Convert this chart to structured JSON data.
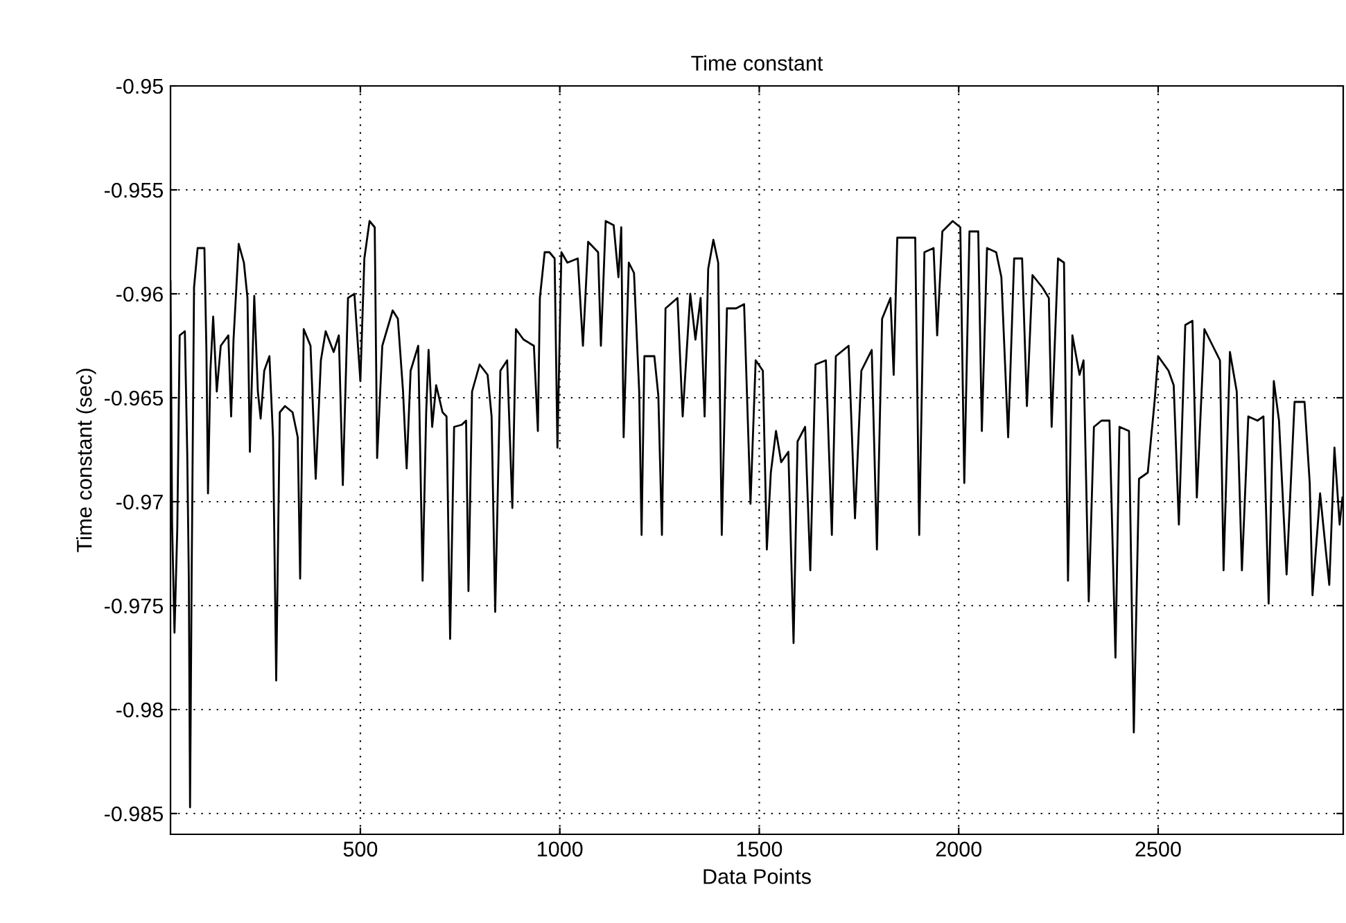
{
  "chart_data": {
    "type": "line",
    "title": "Time constant",
    "xlabel": "Data Points",
    "ylabel": "Time constant (sec)",
    "xlim": [
      24,
      2964
    ],
    "ylim": [
      -0.986,
      -0.95
    ],
    "xticks": [
      500,
      1000,
      1500,
      2000,
      2500
    ],
    "yticks": [
      -0.985,
      -0.98,
      -0.975,
      -0.97,
      -0.965,
      -0.96,
      -0.955,
      -0.95
    ],
    "grid": true,
    "legend": false,
    "marker": "none",
    "line_style": "solid",
    "series": [
      {
        "color": "#000000",
        "x": [
          24,
          28,
          34,
          41,
          47,
          60,
          66,
          70,
          73,
          77,
          83,
          92,
          109,
          114,
          118,
          124,
          131,
          140,
          150,
          169,
          176,
          182,
          195,
          208,
          217,
          223,
          234,
          243,
          250,
          259,
          272,
          281,
          289,
          298,
          311,
          330,
          343,
          349,
          358,
          375,
          388,
          401,
          413,
          433,
          446,
          456,
          469,
          485,
          500,
          510,
          523,
          536,
          542,
          555,
          581,
          594,
          607,
          616,
          626,
          645,
          656,
          665,
          671,
          680,
          690,
          706,
          716,
          725,
          735,
          754,
          765,
          771,
          780,
          799,
          819,
          829,
          838,
          851,
          868,
          881,
          890,
          909,
          935,
          945,
          950,
          962,
          974,
          987,
          994,
          1004,
          1019,
          1045,
          1058,
          1071,
          1096,
          1103,
          1115,
          1135,
          1147,
          1154,
          1160,
          1173,
          1186,
          1199,
          1205,
          1212,
          1237,
          1247,
          1256,
          1265,
          1295,
          1308,
          1327,
          1340,
          1353,
          1363,
          1372,
          1385,
          1397,
          1406,
          1419,
          1442,
          1462,
          1478,
          1491,
          1509,
          1519,
          1529,
          1542,
          1555,
          1573,
          1586,
          1596,
          1615,
          1628,
          1641,
          1667,
          1682,
          1692,
          1724,
          1740,
          1756,
          1782,
          1795,
          1808,
          1829,
          1837,
          1846,
          1891,
          1901,
          1914,
          1937,
          1946,
          1959,
          1985,
          2004,
          2014,
          2027,
          2049,
          2058,
          2071,
          2094,
          2107,
          2124,
          2139,
          2159,
          2171,
          2185,
          2210,
          2226,
          2233,
          2249,
          2264,
          2274,
          2285,
          2303,
          2313,
          2326,
          2339,
          2358,
          2378,
          2393,
          2403,
          2427,
          2439,
          2452,
          2474,
          2491,
          2500,
          2526,
          2539,
          2552,
          2568,
          2586,
          2597,
          2616,
          2642,
          2655,
          2664,
          2680,
          2697,
          2710,
          2726,
          2749,
          2764,
          2777,
          2790,
          2803,
          2822,
          2842,
          2867,
          2880,
          2887,
          2906,
          2929,
          2942,
          2955,
          2962
        ],
        "values": [
          -0.9594,
          -0.9711,
          -0.9763,
          -0.9713,
          -0.962,
          -0.9618,
          -0.9677,
          -0.9738,
          -0.9847,
          -0.9737,
          -0.9597,
          -0.9578,
          -0.9578,
          -0.9627,
          -0.9696,
          -0.9637,
          -0.9611,
          -0.9647,
          -0.9625,
          -0.962,
          -0.9659,
          -0.9622,
          -0.9576,
          -0.9585,
          -0.9602,
          -0.9676,
          -0.9601,
          -0.9647,
          -0.966,
          -0.9637,
          -0.963,
          -0.9669,
          -0.9786,
          -0.9657,
          -0.9654,
          -0.9657,
          -0.9669,
          -0.9737,
          -0.9617,
          -0.9625,
          -0.9689,
          -0.9632,
          -0.9618,
          -0.9628,
          -0.962,
          -0.9692,
          -0.9602,
          -0.96,
          -0.9642,
          -0.9583,
          -0.9565,
          -0.9568,
          -0.9679,
          -0.9625,
          -0.9608,
          -0.9612,
          -0.9647,
          -0.9684,
          -0.9637,
          -0.9625,
          -0.9738,
          -0.9657,
          -0.9627,
          -0.9664,
          -0.9644,
          -0.9657,
          -0.9659,
          -0.9766,
          -0.9664,
          -0.9663,
          -0.9661,
          -0.9743,
          -0.9647,
          -0.9634,
          -0.9639,
          -0.9659,
          -0.9753,
          -0.9637,
          -0.9632,
          -0.9703,
          -0.9617,
          -0.9622,
          -0.9625,
          -0.9666,
          -0.9602,
          -0.958,
          -0.958,
          -0.9583,
          -0.9674,
          -0.958,
          -0.9585,
          -0.9583,
          -0.9625,
          -0.9575,
          -0.958,
          -0.9625,
          -0.9565,
          -0.9567,
          -0.9592,
          -0.9568,
          -0.9669,
          -0.9585,
          -0.959,
          -0.9647,
          -0.9716,
          -0.963,
          -0.963,
          -0.9649,
          -0.9716,
          -0.9607,
          -0.9602,
          -0.9659,
          -0.96,
          -0.9622,
          -0.9602,
          -0.9659,
          -0.9588,
          -0.9574,
          -0.9585,
          -0.9716,
          -0.9607,
          -0.9607,
          -0.9605,
          -0.9701,
          -0.9632,
          -0.9637,
          -0.9723,
          -0.9686,
          -0.9666,
          -0.9681,
          -0.9676,
          -0.9768,
          -0.9671,
          -0.9664,
          -0.9733,
          -0.9634,
          -0.9632,
          -0.9716,
          -0.963,
          -0.9625,
          -0.9708,
          -0.9637,
          -0.9627,
          -0.9723,
          -0.9612,
          -0.9602,
          -0.9639,
          -0.9573,
          -0.9573,
          -0.9716,
          -0.958,
          -0.9578,
          -0.962,
          -0.957,
          -0.9565,
          -0.9568,
          -0.9691,
          -0.957,
          -0.957,
          -0.9666,
          -0.9578,
          -0.958,
          -0.9592,
          -0.9669,
          -0.9583,
          -0.9583,
          -0.9654,
          -0.9591,
          -0.9597,
          -0.9602,
          -0.9664,
          -0.9583,
          -0.9585,
          -0.9738,
          -0.962,
          -0.9639,
          -0.9632,
          -0.9748,
          -0.9664,
          -0.9661,
          -0.9661,
          -0.9775,
          -0.9664,
          -0.9666,
          -0.9811,
          -0.9689,
          -0.9686,
          -0.9652,
          -0.963,
          -0.9637,
          -0.9644,
          -0.9711,
          -0.9615,
          -0.9613,
          -0.9698,
          -0.9617,
          -0.9627,
          -0.9632,
          -0.9733,
          -0.9628,
          -0.9647,
          -0.9733,
          -0.9659,
          -0.9661,
          -0.9659,
          -0.9749,
          -0.9642,
          -0.9661,
          -0.9735,
          -0.9652,
          -0.9652,
          -0.9691,
          -0.9745,
          -0.9696,
          -0.974,
          -0.9674,
          -0.9711,
          -0.9698
        ]
      }
    ]
  }
}
